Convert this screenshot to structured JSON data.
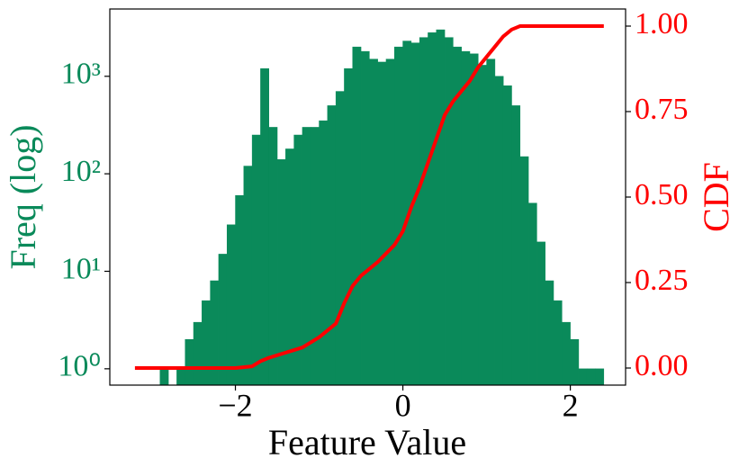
{
  "chart_data": {
    "type": "histogram",
    "xlabel": "Feature Value",
    "ylabel": "Freq (log)",
    "y2label": "CDF",
    "bins": [
      -3.3,
      -3.2,
      -3.1,
      -3.0,
      -2.9,
      -2.8,
      -2.7,
      -2.6,
      -2.5,
      -2.4,
      -2.3,
      -2.2,
      -2.1,
      -2.0,
      -1.9,
      -1.8,
      -1.7,
      -1.6,
      -1.5,
      -1.4,
      -1.3,
      -1.2,
      -1.1,
      -1.0,
      -0.9,
      -0.8,
      -0.7,
      -0.6,
      -0.5,
      -0.4,
      -0.3,
      -0.2,
      -0.1,
      0.0,
      0.1,
      0.2,
      0.3,
      0.4,
      0.5,
      0.6,
      0.7,
      0.8,
      0.9,
      1.0,
      1.1,
      1.2,
      1.3,
      1.4,
      1.5,
      1.6,
      1.7,
      1.8,
      1.9,
      2.0,
      2.1,
      2.2,
      2.3,
      2.4
    ],
    "values": [
      0,
      0,
      0,
      0,
      1,
      0,
      1,
      2,
      3,
      5,
      8,
      15,
      30,
      60,
      120,
      250,
      1200,
      300,
      140,
      180,
      250,
      300,
      300,
      350,
      500,
      700,
      1200,
      2000,
      1800,
      1500,
      1400,
      1500,
      2000,
      2300,
      2200,
      2500,
      2800,
      3000,
      2500,
      2000,
      1800,
      1700,
      1300,
      1500,
      1000,
      800,
      500,
      150,
      50,
      20,
      8,
      5,
      3,
      2,
      1,
      1,
      1
    ],
    "color": "#0a8a5a",
    "yscale": "log",
    "xlim": [
      -3.5,
      2.66
    ],
    "xticks": [
      {
        "value": -2,
        "label": "−2"
      },
      0,
      2
    ],
    "ylim": [
      0.68,
      4900
    ],
    "yticks": [
      {
        "value": 1,
        "label": "10⁰"
      },
      {
        "value": 10,
        "label": "10¹"
      },
      {
        "value": 100,
        "label": "10²"
      },
      {
        "value": 1000,
        "label": "10³"
      }
    ],
    "y2lim": [
      -0.05,
      1.05
    ],
    "y2ticks": [
      {
        "value": 0,
        "label": "0.00"
      },
      0.25,
      {
        "value": 0.5,
        "label": "0.50"
      },
      0.75,
      {
        "value": 1,
        "label": "1.00"
      }
    ],
    "cdf": {
      "axis": "y2",
      "color": "#ff0000",
      "x": [
        -3.2,
        -2.5,
        -2.0,
        -1.8,
        -1.7,
        -1.6,
        -1.2,
        -1.0,
        -0.8,
        -0.7,
        -0.6,
        -0.5,
        -0.3,
        -0.1,
        0.0,
        0.1,
        0.2,
        0.3,
        0.4,
        0.5,
        0.6,
        0.7,
        0.8,
        0.9,
        1.0,
        1.1,
        1.2,
        1.3,
        1.4,
        1.6,
        2.0,
        2.4
      ],
      "values": [
        0,
        0,
        0,
        0.005,
        0.02,
        0.03,
        0.06,
        0.09,
        0.13,
        0.19,
        0.24,
        0.27,
        0.31,
        0.36,
        0.4,
        0.47,
        0.53,
        0.6,
        0.67,
        0.74,
        0.78,
        0.81,
        0.84,
        0.88,
        0.91,
        0.94,
        0.97,
        0.99,
        1.0,
        1.0,
        1.0,
        1.0
      ]
    }
  }
}
